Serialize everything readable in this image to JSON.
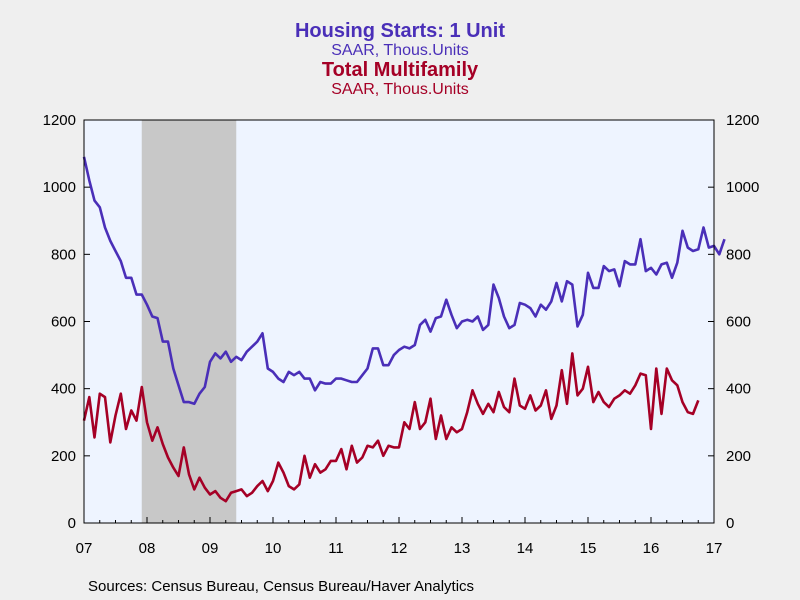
{
  "titles": [
    {
      "main": "Housing Starts: 1 Unit",
      "sub": "SAAR, Thous.Units",
      "color": "#4a2fb8"
    },
    {
      "main": "Total Multifamily",
      "sub": "SAAR, Thous.Units",
      "color": "#a50026"
    }
  ],
  "source": "Sources:  Census Bureau, Census Bureau/Haver Analytics",
  "chart_data": {
    "type": "line",
    "x_start_year": 2007,
    "x_ticks": [
      "07",
      "08",
      "09",
      "10",
      "11",
      "12",
      "13",
      "14",
      "15",
      "16",
      "17"
    ],
    "y_ticks": [
      0,
      200,
      400,
      600,
      800,
      1000,
      1200
    ],
    "ylim": [
      0,
      1200
    ],
    "recession": {
      "start": "2007-12",
      "end": "2009-06",
      "color": "#c8c8c8"
    },
    "plot_bg": "#eef4ff",
    "series": [
      {
        "name": "Housing Starts: 1 Unit",
        "color": "#4a2fb8",
        "start": "2007-01",
        "values": [
          1090,
          1020,
          960,
          940,
          880,
          840,
          810,
          780,
          730,
          730,
          680,
          680,
          650,
          615,
          610,
          540,
          540,
          460,
          410,
          360,
          360,
          355,
          385,
          405,
          480,
          505,
          490,
          510,
          480,
          495,
          485,
          510,
          525,
          540,
          565,
          460,
          450,
          430,
          420,
          450,
          440,
          450,
          430,
          430,
          395,
          420,
          415,
          415,
          430,
          430,
          425,
          420,
          420,
          440,
          460,
          520,
          520,
          470,
          470,
          500,
          515,
          525,
          520,
          530,
          590,
          605,
          570,
          610,
          615,
          665,
          620,
          580,
          600,
          605,
          600,
          615,
          575,
          590,
          710,
          670,
          615,
          580,
          590,
          655,
          650,
          640,
          615,
          650,
          635,
          660,
          715,
          660,
          720,
          710,
          585,
          620,
          745,
          700,
          700,
          765,
          750,
          755,
          705,
          780,
          770,
          770,
          845,
          750,
          760,
          740,
          770,
          775,
          730,
          775,
          870,
          820,
          810,
          815,
          880,
          820,
          825,
          800,
          845
        ]
      },
      {
        "name": "Total Multifamily",
        "color": "#a50026",
        "start": "2007-01",
        "values": [
          305,
          375,
          255,
          385,
          375,
          240,
          320,
          385,
          280,
          335,
          305,
          405,
          300,
          245,
          285,
          235,
          195,
          165,
          140,
          225,
          145,
          100,
          135,
          105,
          85,
          95,
          75,
          65,
          90,
          95,
          100,
          80,
          90,
          110,
          125,
          95,
          125,
          180,
          150,
          110,
          100,
          115,
          200,
          135,
          175,
          150,
          160,
          185,
          185,
          220,
          160,
          230,
          180,
          195,
          230,
          225,
          245,
          200,
          230,
          225,
          225,
          300,
          280,
          360,
          280,
          300,
          370,
          250,
          320,
          250,
          285,
          270,
          280,
          330,
          395,
          355,
          325,
          355,
          330,
          390,
          345,
          330,
          430,
          350,
          340,
          380,
          335,
          350,
          395,
          310,
          350,
          455,
          355,
          505,
          380,
          400,
          465,
          360,
          390,
          360,
          345,
          370,
          380,
          395,
          385,
          410,
          445,
          440,
          280,
          460,
          325,
          460,
          425,
          410,
          360,
          330,
          325,
          365
        ]
      }
    ]
  }
}
